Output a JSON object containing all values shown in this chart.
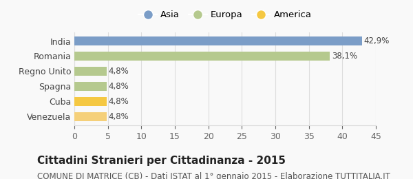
{
  "categories": [
    "Venezuela",
    "Cuba",
    "Spagna",
    "Regno Unito",
    "Romania",
    "India"
  ],
  "values": [
    4.8,
    4.8,
    4.8,
    4.8,
    38.1,
    42.9
  ],
  "labels": [
    "4,8%",
    "4,8%",
    "4,8%",
    "4,8%",
    "38,1%",
    "42,9%"
  ],
  "colors": [
    "#f5d07a",
    "#f5c842",
    "#b5c98e",
    "#b5c98e",
    "#b5c98e",
    "#7b9dc7"
  ],
  "legend_items": [
    {
      "label": "Asia",
      "color": "#7b9dc7"
    },
    {
      "label": "Europa",
      "color": "#b5c98e"
    },
    {
      "label": "America",
      "color": "#f5c842"
    }
  ],
  "xlim": [
    0,
    45
  ],
  "xticks": [
    0,
    5,
    10,
    15,
    20,
    25,
    30,
    35,
    40,
    45
  ],
  "title": "Cittadini Stranieri per Cittadinanza - 2015",
  "subtitle": "COMUNE DI MATRICE (CB) - Dati ISTAT al 1° gennaio 2015 - Elaborazione TUTTITALIA.IT",
  "background_color": "#f9f9f9",
  "grid_color": "#dddddd",
  "bar_height": 0.6,
  "title_fontsize": 11,
  "subtitle_fontsize": 8.5,
  "tick_fontsize": 9,
  "label_fontsize": 8.5
}
